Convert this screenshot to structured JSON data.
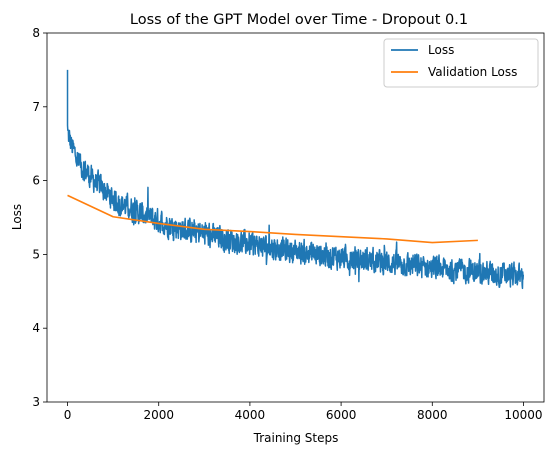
{
  "chart_data": {
    "type": "line",
    "title": "Loss of the GPT Model over Time - Dropout 0.1",
    "xlabel": "Training Steps",
    "ylabel": "Loss",
    "xlim": [
      -450,
      10450
    ],
    "ylim": [
      3,
      8
    ],
    "x_ticks": [
      0,
      2000,
      4000,
      6000,
      8000,
      10000
    ],
    "x_tick_labels": [
      "0",
      "2000",
      "4000",
      "6000",
      "8000",
      "10000"
    ],
    "y_ticks": [
      3,
      4,
      5,
      6,
      7,
      8
    ],
    "y_tick_labels": [
      "3",
      "4",
      "5",
      "6",
      "7",
      "8"
    ],
    "grid": false,
    "legend_position": "top-right",
    "series": [
      {
        "name": "Loss",
        "color": "#1f77b4",
        "style": "noisy",
        "x_range": [
          0,
          10000
        ],
        "initial_spike": 7.5,
        "trend": {
          "x": [
            0,
            100,
            250,
            500,
            750,
            1000,
            1500,
            2000,
            2500,
            3000,
            4000,
            5000,
            6000,
            7000,
            8000,
            9000,
            10000
          ],
          "y": [
            6.65,
            6.45,
            6.25,
            6.05,
            5.9,
            5.75,
            5.58,
            5.45,
            5.35,
            5.27,
            5.14,
            5.04,
            4.96,
            4.89,
            4.82,
            4.76,
            4.7
          ]
        },
        "noise_amplitude": 0.22
      },
      {
        "name": "Validation Loss",
        "color": "#ff7f0e",
        "x": [
          0,
          1000,
          2000,
          3000,
          4000,
          5000,
          6000,
          7000,
          8000,
          9000
        ],
        "y": [
          5.8,
          5.51,
          5.42,
          5.34,
          5.31,
          5.27,
          5.24,
          5.21,
          5.16,
          5.19
        ]
      }
    ]
  }
}
